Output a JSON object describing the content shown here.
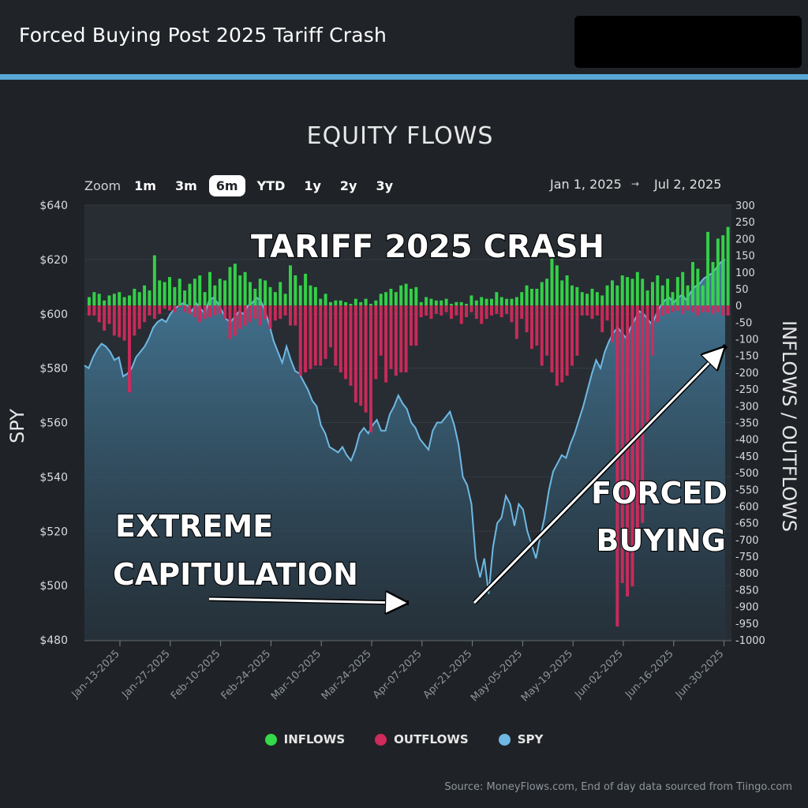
{
  "header": {
    "title": "Forced Buying Post 2025 Tariff Crash"
  },
  "zoom": {
    "label": "Zoom",
    "options": [
      "1m",
      "3m",
      "6m",
      "YTD",
      "1y",
      "2y",
      "3y"
    ],
    "active": "6m"
  },
  "range": {
    "from": "Jan 1, 2025",
    "arrow": "→",
    "to": "Jul 2, 2025"
  },
  "annotations": {
    "crash": "TARIFF 2025 CRASH",
    "capitulation": [
      "EXTREME",
      "CAPITULATION"
    ],
    "forced": [
      "FORCED",
      "BUYING"
    ]
  },
  "legend": [
    {
      "label": "INFLOWS",
      "color": "#35d94a"
    },
    {
      "label": "OUTFLOWS",
      "color": "#d12a5c"
    },
    {
      "label": "SPY",
      "color": "#6fb8e3"
    }
  ],
  "source": "Source: MoneyFlows.com, End of day data sourced from Tiingo.com",
  "chart_data": {
    "type": "bar+area",
    "title": "EQUITY FLOWS",
    "ylabel_left": "SPY",
    "ylabel_right": "INFLOWS / OUTFLOWS",
    "ylim_left": [
      480,
      640
    ],
    "ylim_right": [
      -1000,
      300
    ],
    "left_ticks": [
      "$640",
      "$620",
      "$600",
      "$580",
      "$560",
      "$540",
      "$520",
      "$500",
      "$480"
    ],
    "right_ticks": [
      300,
      250,
      200,
      150,
      100,
      50,
      0,
      -50,
      -100,
      -150,
      -200,
      -250,
      -300,
      -350,
      -400,
      -450,
      -500,
      -550,
      -600,
      -650,
      -700,
      -750,
      -800,
      -850,
      -900,
      -950,
      -1000
    ],
    "x_ticks": [
      "Jan-13-2025",
      "Jan-27-2025",
      "Feb-10-2025",
      "Feb-24-2025",
      "Mar-10-2025",
      "Mar-24-2025",
      "Apr-07-2025",
      "Apr-21-2025",
      "May-05-2025",
      "May-19-2025",
      "Jun-02-2025",
      "Jun-16-2025",
      "Jun-30-2025"
    ],
    "inflows": [
      25,
      40,
      35,
      15,
      30,
      35,
      40,
      25,
      30,
      50,
      40,
      60,
      45,
      150,
      75,
      70,
      85,
      55,
      80,
      45,
      65,
      80,
      90,
      40,
      100,
      60,
      80,
      75,
      115,
      125,
      90,
      100,
      70,
      50,
      80,
      75,
      55,
      40,
      70,
      35,
      120,
      90,
      60,
      95,
      60,
      55,
      20,
      35,
      10,
      15,
      15,
      10,
      5,
      20,
      10,
      20,
      5,
      15,
      35,
      40,
      50,
      40,
      60,
      65,
      50,
      55,
      10,
      25,
      20,
      15,
      15,
      20,
      5,
      10,
      10,
      5,
      30,
      15,
      25,
      20,
      20,
      40,
      25,
      20,
      20,
      25,
      40,
      60,
      50,
      50,
      70,
      80,
      140,
      120,
      75,
      90,
      60,
      55,
      40,
      35,
      50,
      40,
      30,
      60,
      75,
      60,
      90,
      85,
      80,
      100,
      80,
      45,
      70,
      90,
      60,
      80,
      40,
      85,
      100,
      60,
      130,
      110,
      60,
      220,
      130,
      200,
      210,
      235
    ],
    "outflows": [
      -30,
      -30,
      -50,
      -75,
      -55,
      -90,
      -95,
      -105,
      -260,
      -90,
      -70,
      -50,
      -30,
      -40,
      -25,
      -10,
      -15,
      -20,
      -5,
      -20,
      -25,
      -35,
      -50,
      -40,
      -35,
      -30,
      -25,
      -40,
      -100,
      -90,
      -70,
      -60,
      -50,
      -40,
      -60,
      -40,
      -70,
      -45,
      -40,
      -30,
      -60,
      -60,
      -210,
      -200,
      -190,
      -180,
      -180,
      -160,
      -125,
      -180,
      -200,
      -220,
      -240,
      -290,
      -300,
      -320,
      -380,
      -220,
      -150,
      -230,
      -190,
      -210,
      -200,
      -200,
      -120,
      -120,
      -35,
      -30,
      -40,
      -25,
      -30,
      -20,
      -40,
      -30,
      -55,
      -35,
      -20,
      -40,
      -55,
      -40,
      -30,
      -25,
      -35,
      -25,
      -50,
      -100,
      -40,
      -80,
      -130,
      -120,
      -180,
      -150,
      -200,
      -240,
      -230,
      -210,
      -180,
      -150,
      -30,
      -30,
      -40,
      -30,
      -80,
      -45,
      -110,
      -960,
      -830,
      -870,
      -840,
      -700,
      -650,
      -350,
      -150,
      -50,
      -30,
      -25,
      -20,
      -15,
      -25,
      -15,
      -20,
      -30,
      -20,
      -20,
      -25,
      -20,
      -30,
      -30
    ],
    "spy": [
      581,
      580,
      584,
      587,
      589,
      588,
      586,
      583,
      584,
      577,
      578,
      580,
      584,
      586,
      588,
      591,
      595,
      597,
      598,
      597,
      600,
      602,
      603,
      604,
      603,
      601,
      604,
      602,
      600,
      605,
      606,
      604,
      601,
      598,
      597,
      599,
      601,
      600,
      603,
      604,
      606,
      605,
      601,
      596,
      590,
      586,
      582,
      588,
      583,
      579,
      578,
      575,
      572,
      568,
      566,
      559,
      556,
      551,
      550,
      549,
      551,
      548,
      546,
      550,
      556,
      558,
      556,
      559,
      561,
      557,
      557,
      563,
      566,
      570,
      567,
      565,
      560,
      558,
      554,
      552,
      550,
      557,
      560,
      560,
      562,
      564,
      559,
      552,
      540,
      537,
      530,
      510,
      503,
      510,
      497,
      514,
      523,
      525,
      533,
      530,
      522,
      530,
      528,
      520,
      515,
      510,
      518,
      525,
      535,
      542,
      545,
      548,
      547,
      552,
      556,
      561,
      566,
      572,
      578,
      583,
      580,
      586,
      590,
      593,
      595,
      593,
      591,
      595,
      598,
      601,
      600,
      598,
      596,
      600,
      603,
      605,
      606,
      604,
      606,
      607,
      605,
      608,
      610,
      611,
      613,
      614,
      615,
      617,
      619,
      620
    ]
  }
}
